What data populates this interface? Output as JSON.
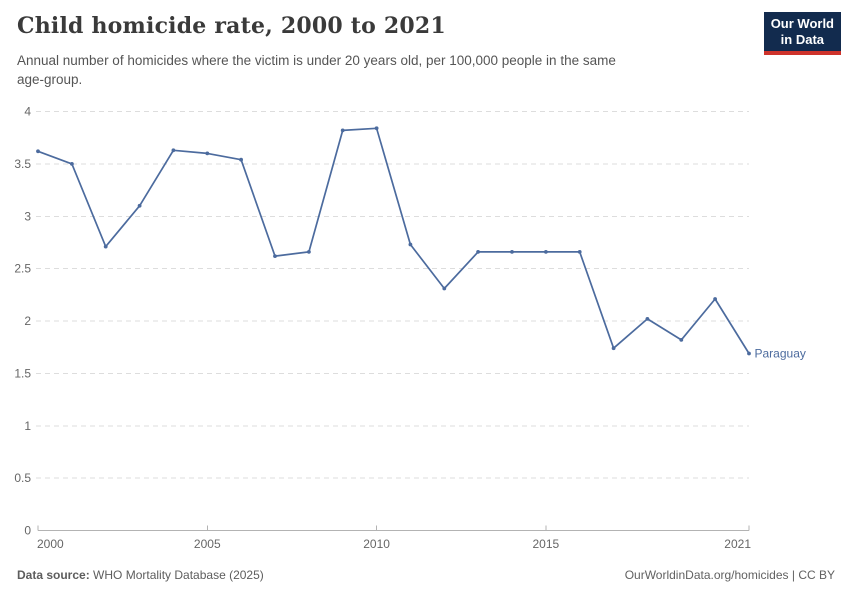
{
  "header": {
    "title": "Child homicide rate, 2000 to 2021",
    "subtitle_lines": [
      "Annual number of homicides where the victim is under 20 years old, per 100,000 people in the same",
      "age-group."
    ],
    "logo": {
      "line1": "Our World",
      "line2": "in Data",
      "bg_color": "#122B4E",
      "accent_color": "#CE332B"
    }
  },
  "chart_data": {
    "type": "line",
    "title": "Child homicide rate, 2000 to 2021",
    "x": [
      2000,
      2001,
      2002,
      2003,
      2004,
      2005,
      2006,
      2007,
      2008,
      2009,
      2010,
      2011,
      2012,
      2013,
      2014,
      2015,
      2016,
      2017,
      2018,
      2019,
      2020,
      2021
    ],
    "series": [
      {
        "name": "Paraguay",
        "color": "#4C6B9E",
        "values": [
          3.62,
          3.5,
          2.71,
          3.1,
          3.63,
          3.6,
          3.54,
          2.62,
          2.66,
          3.82,
          3.84,
          2.73,
          2.31,
          2.66,
          2.66,
          2.66,
          2.66,
          1.74,
          2.02,
          1.82,
          2.21,
          1.69
        ]
      }
    ],
    "xlabel": "",
    "ylabel": "",
    "xlim": [
      2000,
      2021
    ],
    "ylim": [
      0,
      4
    ],
    "x_ticks": [
      2000,
      2005,
      2010,
      2015,
      2021
    ],
    "y_ticks": [
      0,
      0.5,
      1,
      1.5,
      2,
      2.5,
      3,
      3.5,
      4
    ],
    "grid": true,
    "legend_position": "end-of-line",
    "end_label": "Paraguay",
    "grid_color": "#dddddd",
    "axis_color": "#b3b3b3",
    "tick_label_color": "#666666"
  },
  "footer": {
    "source_label": "Data source:",
    "source_text": "WHO Mortality Database (2025)",
    "right_text": "OurWorldinData.org/homicides | CC BY"
  }
}
